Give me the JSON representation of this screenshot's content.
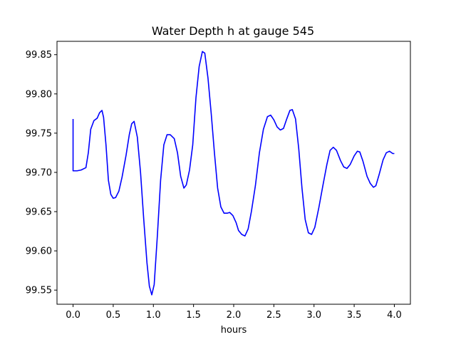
{
  "chart_data": {
    "type": "line",
    "title": "Water Depth h at gauge 545",
    "xlabel": "hours",
    "ylabel": "",
    "xlim": [
      -0.2,
      4.2
    ],
    "ylim": [
      99.532,
      99.867
    ],
    "x_ticks": [
      0.0,
      0.5,
      1.0,
      1.5,
      2.0,
      2.5,
      3.0,
      3.5,
      4.0
    ],
    "x_tick_labels": [
      "0.0",
      "0.5",
      "1.0",
      "1.5",
      "2.0",
      "2.5",
      "3.0",
      "3.5",
      "4.0"
    ],
    "y_ticks": [
      99.55,
      99.6,
      99.65,
      99.7,
      99.75,
      99.8,
      99.85
    ],
    "y_tick_labels": [
      "99.55",
      "99.60",
      "99.65",
      "99.70",
      "99.75",
      "99.80",
      "99.85"
    ],
    "grid": false,
    "series": [
      {
        "color": "#0000ff",
        "points": [
          [
            0.0,
            99.768
          ],
          [
            0.0,
            99.702
          ],
          [
            0.05,
            99.702
          ],
          [
            0.1,
            99.703
          ],
          [
            0.16,
            99.706
          ],
          [
            0.19,
            99.725
          ],
          [
            0.22,
            99.755
          ],
          [
            0.26,
            99.766
          ],
          [
            0.3,
            99.769
          ],
          [
            0.33,
            99.776
          ],
          [
            0.36,
            99.779
          ],
          [
            0.38,
            99.77
          ],
          [
            0.41,
            99.735
          ],
          [
            0.44,
            99.69
          ],
          [
            0.47,
            99.672
          ],
          [
            0.5,
            99.667
          ],
          [
            0.53,
            99.668
          ],
          [
            0.57,
            99.676
          ],
          [
            0.61,
            99.694
          ],
          [
            0.66,
            99.722
          ],
          [
            0.7,
            99.748
          ],
          [
            0.73,
            99.762
          ],
          [
            0.76,
            99.765
          ],
          [
            0.8,
            99.745
          ],
          [
            0.84,
            99.7
          ],
          [
            0.88,
            99.64
          ],
          [
            0.92,
            99.585
          ],
          [
            0.95,
            99.555
          ],
          [
            0.98,
            99.544
          ],
          [
            1.01,
            99.557
          ],
          [
            1.05,
            99.62
          ],
          [
            1.09,
            99.69
          ],
          [
            1.13,
            99.735
          ],
          [
            1.17,
            99.748
          ],
          [
            1.21,
            99.748
          ],
          [
            1.26,
            99.743
          ],
          [
            1.3,
            99.725
          ],
          [
            1.34,
            99.695
          ],
          [
            1.38,
            99.68
          ],
          [
            1.41,
            99.684
          ],
          [
            1.45,
            99.703
          ],
          [
            1.49,
            99.735
          ],
          [
            1.53,
            99.795
          ],
          [
            1.57,
            99.835
          ],
          [
            1.61,
            99.854
          ],
          [
            1.64,
            99.852
          ],
          [
            1.68,
            99.82
          ],
          [
            1.72,
            99.775
          ],
          [
            1.76,
            99.725
          ],
          [
            1.8,
            99.68
          ],
          [
            1.84,
            99.656
          ],
          [
            1.88,
            99.648
          ],
          [
            1.92,
            99.648
          ],
          [
            1.95,
            99.649
          ],
          [
            1.99,
            99.645
          ],
          [
            2.03,
            99.636
          ],
          [
            2.06,
            99.626
          ],
          [
            2.1,
            99.621
          ],
          [
            2.14,
            99.619
          ],
          [
            2.18,
            99.628
          ],
          [
            2.22,
            99.65
          ],
          [
            2.27,
            99.683
          ],
          [
            2.32,
            99.725
          ],
          [
            2.37,
            99.755
          ],
          [
            2.42,
            99.771
          ],
          [
            2.46,
            99.773
          ],
          [
            2.5,
            99.767
          ],
          [
            2.54,
            99.758
          ],
          [
            2.58,
            99.754
          ],
          [
            2.62,
            99.756
          ],
          [
            2.66,
            99.768
          ],
          [
            2.7,
            99.779
          ],
          [
            2.73,
            99.78
          ],
          [
            2.77,
            99.768
          ],
          [
            2.81,
            99.73
          ],
          [
            2.85,
            99.68
          ],
          [
            2.89,
            99.64
          ],
          [
            2.93,
            99.623
          ],
          [
            2.97,
            99.621
          ],
          [
            3.01,
            99.63
          ],
          [
            3.06,
            99.655
          ],
          [
            3.11,
            99.683
          ],
          [
            3.16,
            99.71
          ],
          [
            3.2,
            99.728
          ],
          [
            3.24,
            99.732
          ],
          [
            3.28,
            99.728
          ],
          [
            3.33,
            99.715
          ],
          [
            3.37,
            99.707
          ],
          [
            3.41,
            99.705
          ],
          [
            3.45,
            99.71
          ],
          [
            3.5,
            99.721
          ],
          [
            3.54,
            99.727
          ],
          [
            3.57,
            99.726
          ],
          [
            3.61,
            99.714
          ],
          [
            3.66,
            99.695
          ],
          [
            3.7,
            99.686
          ],
          [
            3.74,
            99.681
          ],
          [
            3.77,
            99.683
          ],
          [
            3.81,
            99.697
          ],
          [
            3.86,
            99.716
          ],
          [
            3.9,
            99.725
          ],
          [
            3.94,
            99.727
          ],
          [
            3.98,
            99.724
          ],
          [
            4.0,
            99.724
          ]
        ]
      }
    ]
  }
}
